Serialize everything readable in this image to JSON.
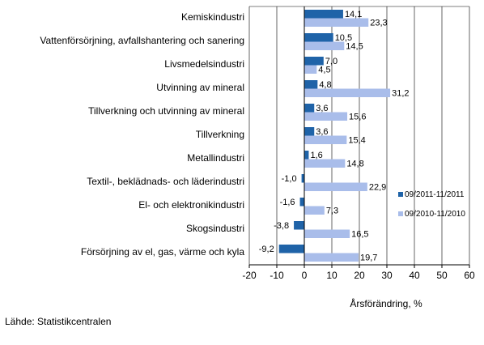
{
  "chart_data": {
    "type": "bar",
    "orientation": "horizontal",
    "categories": [
      "Kemiskindustri",
      "Vattenförsörjning, avfallshantering och sanering",
      "Livsmedelsindustri",
      "Utvinning av mineral",
      "Tillverkning och utvinning av mineral",
      "Tillverkning",
      "Metallindustri",
      "Textil-, beklädnads- och läderindustri",
      "El- och elektronikindustri",
      "Skogsindustri",
      "Försörjning av el, gas, värme och kyla"
    ],
    "series": [
      {
        "name": "09/2011-11/2011",
        "color": "#1f63a8",
        "values": [
          14.1,
          10.5,
          7.0,
          4.8,
          3.6,
          3.6,
          1.6,
          -1.0,
          -1.6,
          -3.8,
          -9.2
        ],
        "labels": [
          "14,1",
          "10,5",
          "7,0",
          "4,8",
          "3,6",
          "3,6",
          "1,6",
          "-1,0",
          "-1,6",
          "-3,8",
          "-9,2"
        ]
      },
      {
        "name": "09/2010-11/2010",
        "color": "#a9bdea",
        "values": [
          23.3,
          14.5,
          4.5,
          31.2,
          15.6,
          15.4,
          14.8,
          22.9,
          7.3,
          16.5,
          19.7
        ],
        "labels": [
          "23,3",
          "14,5",
          "4,5",
          "31,2",
          "15,6",
          "15,4",
          "14,8",
          "22,9",
          "7,3",
          "16,5",
          "19,7"
        ]
      }
    ],
    "xlim": [
      -20,
      60
    ],
    "xticks": [
      -20,
      -10,
      0,
      10,
      20,
      30,
      40,
      50,
      60
    ],
    "xlabel": "Årsförändring, %",
    "grid": true,
    "legend_position": "right"
  },
  "source_text": "Lähde: Statistikcentralen"
}
